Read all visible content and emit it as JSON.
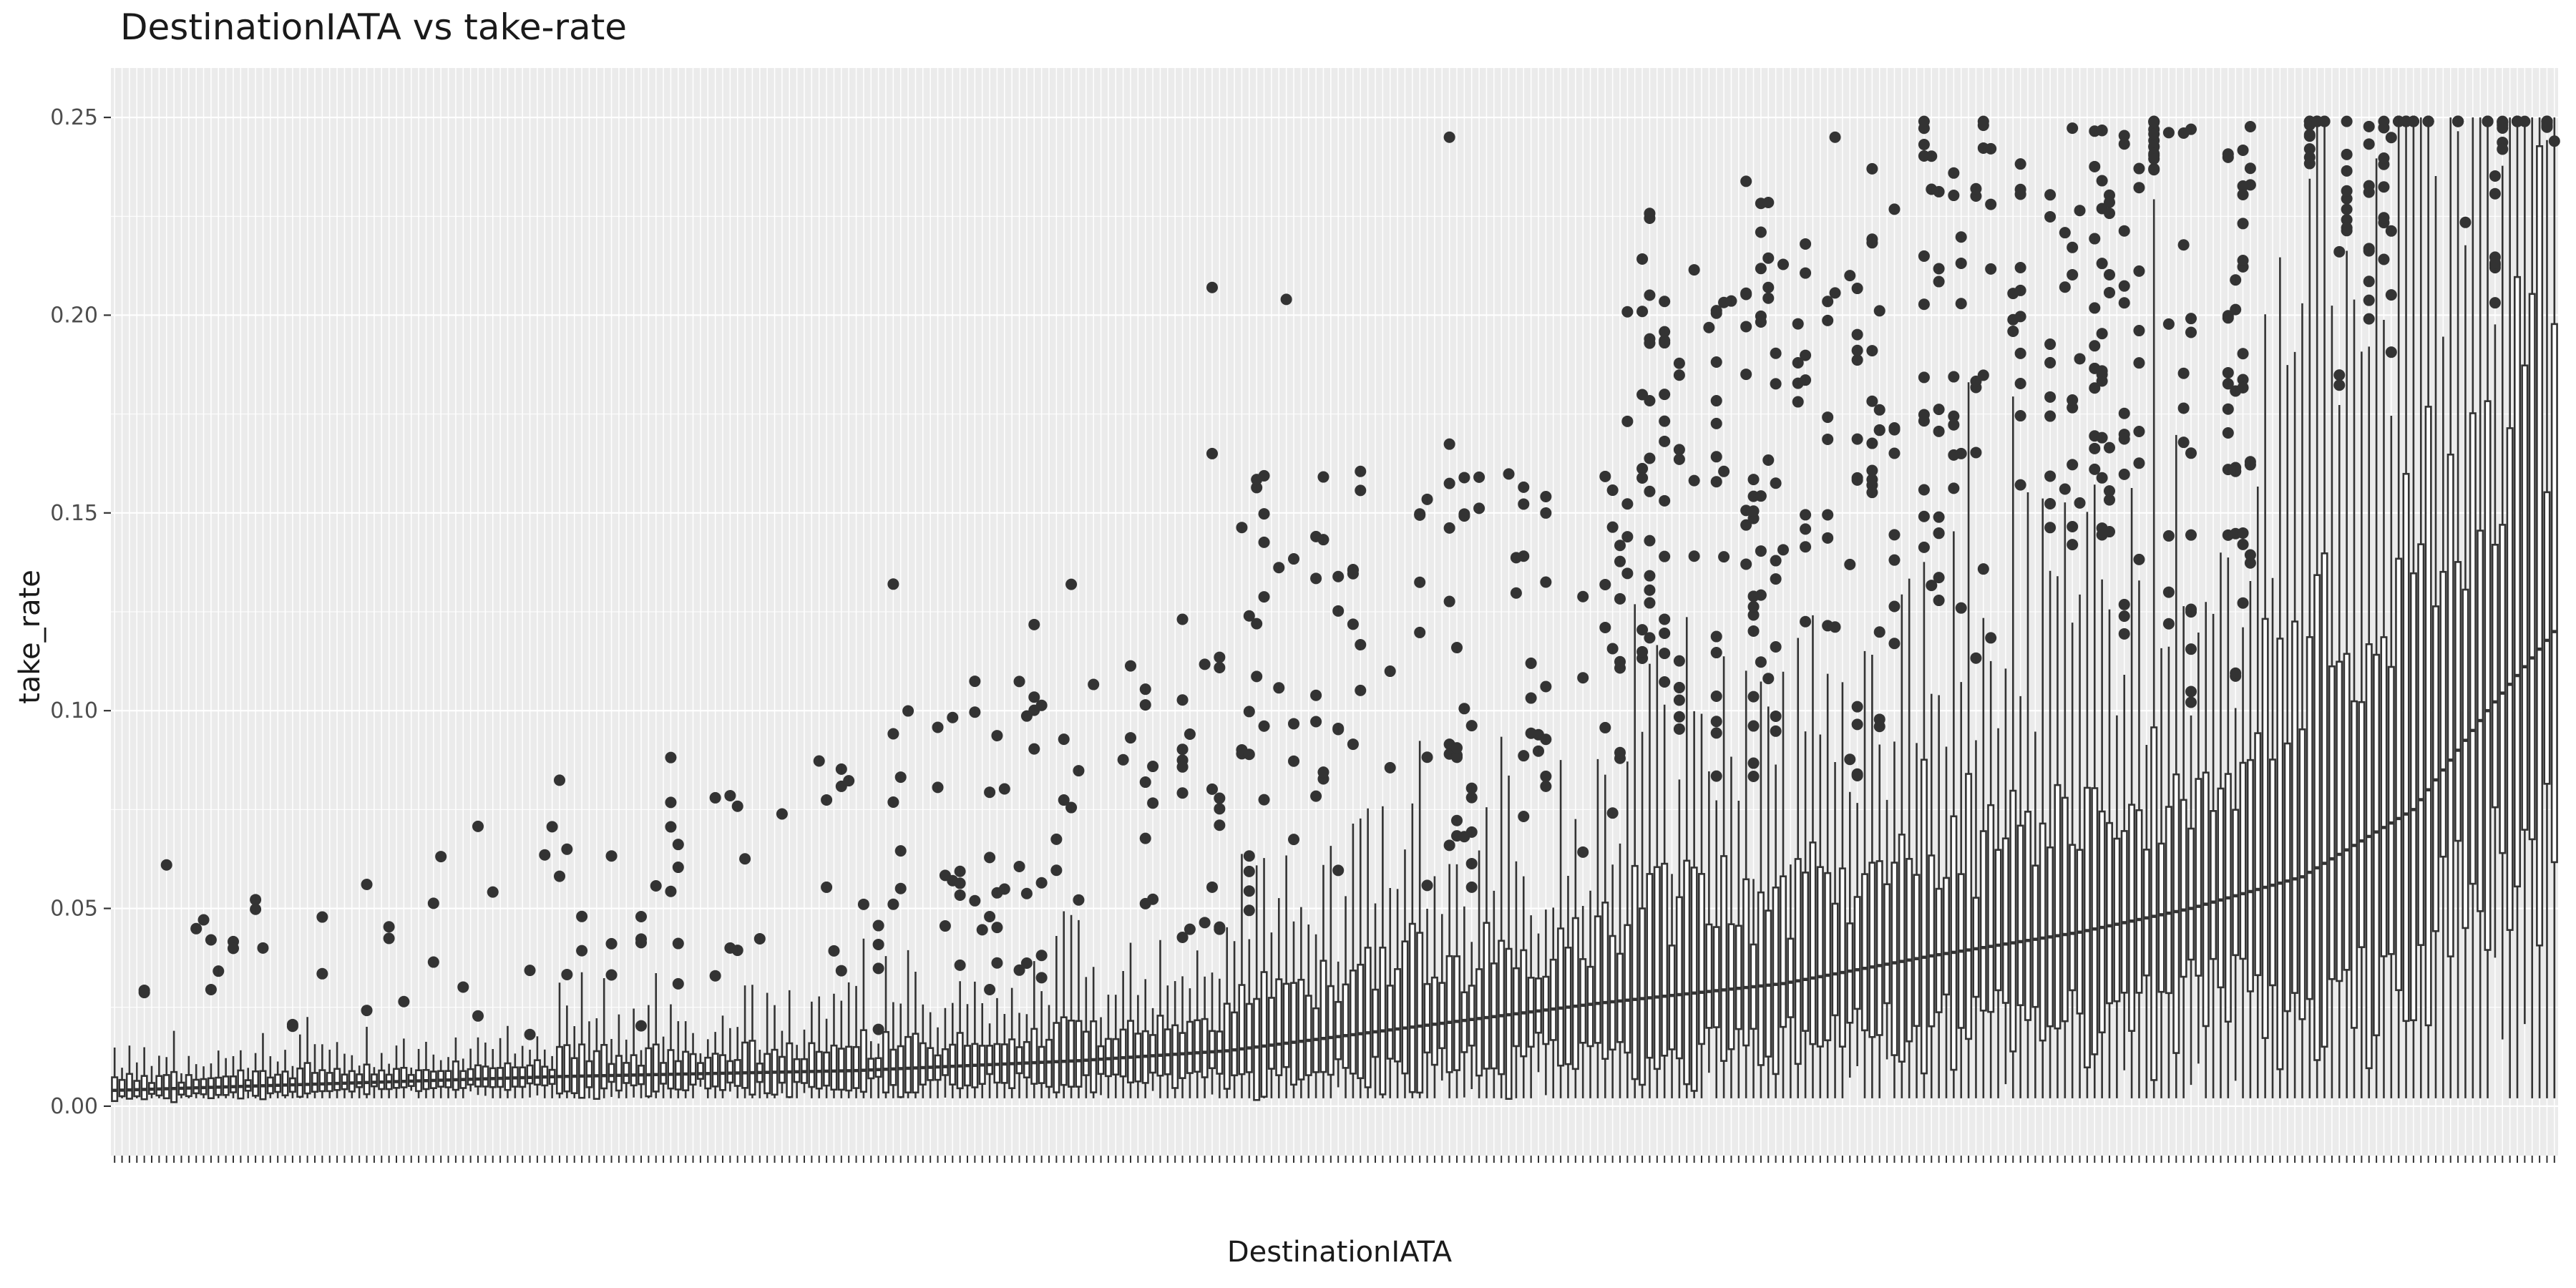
{
  "chart_data": {
    "type": "box",
    "title": "DestinationIATA vs take-rate",
    "xlabel": "DestinationIATA",
    "ylabel": "take_rate",
    "ylim": [
      -0.0125,
      0.2625
    ],
    "y_ticks": [
      "0.00",
      "0.05",
      "0.10",
      "0.15",
      "0.20",
      "0.25"
    ],
    "y_tick_values": [
      0.0,
      0.05,
      0.1,
      0.15,
      0.2,
      0.25
    ],
    "sorted_by": "median",
    "category_count": 330,
    "grid": "on",
    "legend": "none",
    "series_color": "#333333",
    "median_profile": [
      [
        0,
        0.004
      ],
      [
        60,
        0.0075
      ],
      [
        100,
        0.009
      ],
      [
        130,
        0.0115
      ],
      [
        150,
        0.014
      ],
      [
        175,
        0.02
      ],
      [
        200,
        0.026
      ],
      [
        225,
        0.031
      ],
      [
        245,
        0.038
      ],
      [
        265,
        0.044
      ],
      [
        280,
        0.05
      ],
      [
        295,
        0.058
      ],
      [
        310,
        0.075
      ],
      [
        320,
        0.1
      ],
      [
        329,
        0.12
      ]
    ],
    "outlier_examples": [
      {
        "x_index": 7,
        "y": 0.061
      },
      {
        "x_index": 105,
        "y": 0.132
      },
      {
        "x_index": 148,
        "y": 0.165
      },
      {
        "x_index": 148,
        "y": 0.207
      },
      {
        "x_index": 158,
        "y": 0.204
      },
      {
        "x_index": 180,
        "y": 0.245
      },
      {
        "x_index": 232,
        "y": 0.245
      },
      {
        "x_index": 280,
        "y": 0.247
      },
      {
        "x_index": 298,
        "y": 0.249
      },
      {
        "x_index": 329,
        "y": 0.244
      }
    ]
  }
}
